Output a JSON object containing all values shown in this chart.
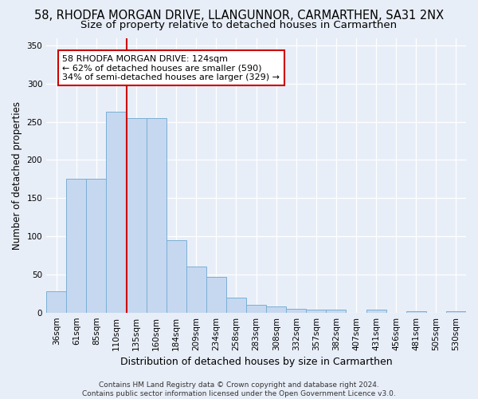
{
  "title": "58, RHODFA MORGAN DRIVE, LLANGUNNOR, CARMARTHEN, SA31 2NX",
  "subtitle": "Size of property relative to detached houses in Carmarthen",
  "xlabel": "Distribution of detached houses by size in Carmarthen",
  "ylabel": "Number of detached properties",
  "categories": [
    "36sqm",
    "61sqm",
    "85sqm",
    "110sqm",
    "135sqm",
    "160sqm",
    "184sqm",
    "209sqm",
    "234sqm",
    "258sqm",
    "283sqm",
    "308sqm",
    "332sqm",
    "357sqm",
    "382sqm",
    "407sqm",
    "431sqm",
    "456sqm",
    "481sqm",
    "505sqm",
    "530sqm"
  ],
  "values": [
    28,
    175,
    175,
    263,
    255,
    255,
    95,
    60,
    47,
    20,
    10,
    8,
    5,
    4,
    4,
    0,
    4,
    0,
    2,
    0,
    2
  ],
  "bar_color": "#c5d8f0",
  "bar_edge_color": "#7bafd4",
  "vline_color": "#cc0000",
  "annotation_text": "58 RHODFA MORGAN DRIVE: 124sqm\n← 62% of detached houses are smaller (590)\n34% of semi-detached houses are larger (329) →",
  "annotation_box_color": "#ffffff",
  "annotation_box_edge": "#cc0000",
  "background_color": "#e8eef8",
  "plot_bg_color": "#e8eef8",
  "ylim": [
    0,
    360
  ],
  "yticks": [
    0,
    50,
    100,
    150,
    200,
    250,
    300,
    350
  ],
  "title_fontsize": 10.5,
  "subtitle_fontsize": 9.5,
  "xlabel_fontsize": 9,
  "ylabel_fontsize": 8.5,
  "tick_fontsize": 7.5,
  "annotation_fontsize": 8,
  "footer_fontsize": 6.5,
  "footer_text": "Contains HM Land Registry data © Crown copyright and database right 2024.\nContains public sector information licensed under the Open Government Licence v3.0."
}
